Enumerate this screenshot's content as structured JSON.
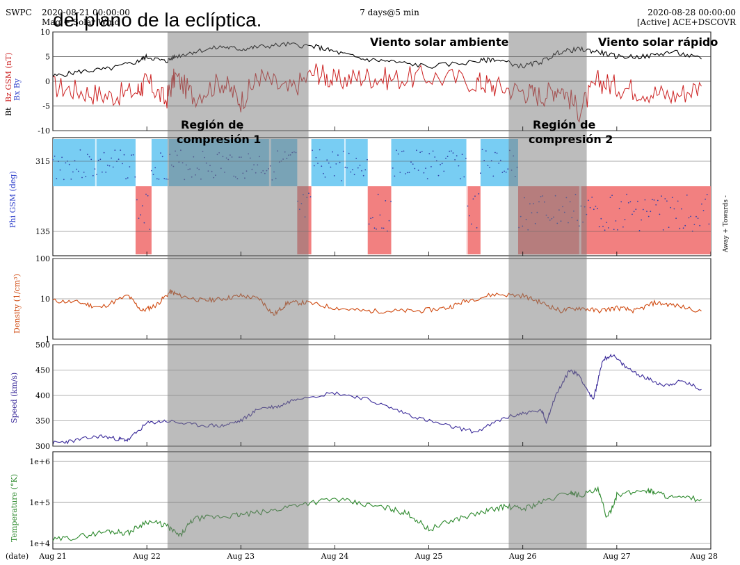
{
  "header": {
    "caption_fragment": "del plano de la eclíptica.",
    "agency": "SWPC",
    "start_date": "2020-08-21 00:00:00",
    "product": "Mag + Solar Wind",
    "span": "7 days@5 min",
    "end_date": "2020-08-28 00:00:00",
    "source": "[Active] ACE+DSCOVR"
  },
  "annotations": {
    "ambient": "Viento solar ambiente",
    "fast": "Viento solar rápido",
    "region1_line1": "Región   de",
    "region1_line2": "compresión 1",
    "region2_line1": "Región  de",
    "region2_line2": "compresión 2"
  },
  "colors": {
    "bt": "#000000",
    "bz": "#cc2222",
    "by": "#3344cc",
    "phi_towards": "#78cdf3",
    "phi_away": "#f28080",
    "phi_points": "#3344aa",
    "density": "#d04a10",
    "speed": "#3a2a9a",
    "temperature": "#2e8a2e",
    "shade": "#7a7a7a"
  },
  "chart_data": [
    {
      "type": "line",
      "panel": "mag",
      "ylabel_parts": [
        "Bt",
        "Bz GSM (nT)",
        "Bx",
        "By"
      ],
      "ylim": [
        -10,
        10
      ],
      "yticks": [
        -10,
        -5,
        0,
        5,
        10
      ],
      "x_unit": "days since 2020-08-21 00:00",
      "series": [
        {
          "name": "Bt",
          "x": [
            0,
            0.3,
            0.6,
            0.9,
            1.0,
            1.2,
            1.3,
            1.5,
            1.8,
            2.0,
            2.2,
            2.5,
            2.8,
            3.0,
            3.3,
            3.6,
            4.0,
            4.5,
            4.7,
            5.0,
            5.2,
            5.4,
            5.6,
            5.8,
            6.0,
            6.3,
            6.6,
            6.9
          ],
          "y": [
            1,
            2,
            2.5,
            4,
            5,
            4,
            5,
            6,
            7,
            6.5,
            7,
            7.5,
            7,
            6,
            4.5,
            4,
            3,
            4,
            4.5,
            3,
            4,
            6,
            6.5,
            6,
            5,
            5,
            6,
            4.5
          ]
        },
        {
          "name": "Bz",
          "x": [
            0,
            0.3,
            0.6,
            0.9,
            1.0,
            1.2,
            1.3,
            1.5,
            1.8,
            2.0,
            2.2,
            2.5,
            2.8,
            3.0,
            3.3,
            3.6,
            4.0,
            4.5,
            4.7,
            5.0,
            5.2,
            5.4,
            5.6,
            5.8,
            6.0,
            6.3,
            6.6,
            6.9
          ],
          "y": [
            -1,
            -2,
            -3,
            -2,
            0,
            -4,
            1,
            -3,
            0,
            -4,
            1,
            -2,
            2,
            0,
            1,
            0.5,
            1,
            0,
            -1,
            -2,
            -3,
            -1,
            -6,
            0,
            -1,
            -2,
            -3,
            -1
          ]
        }
      ]
    },
    {
      "type": "scatter",
      "panel": "phi",
      "ylabel": "Phi GSM (deg)",
      "yticks": [
        135,
        315
      ],
      "right_label": "Away +   Towards -",
      "sectors": [
        {
          "from": 0.0,
          "to": 0.88,
          "sector": "towards"
        },
        {
          "from": 0.88,
          "to": 1.05,
          "sector": "away"
        },
        {
          "from": 1.05,
          "to": 2.6,
          "sector": "towards"
        },
        {
          "from": 2.6,
          "to": 2.75,
          "sector": "away"
        },
        {
          "from": 2.75,
          "to": 3.35,
          "sector": "towards"
        },
        {
          "from": 3.35,
          "to": 3.6,
          "sector": "away"
        },
        {
          "from": 3.6,
          "to": 4.4,
          "sector": "towards"
        },
        {
          "from": 4.4,
          "to": 4.55,
          "sector": "away"
        },
        {
          "from": 4.55,
          "to": 4.95,
          "sector": "towards"
        },
        {
          "from": 4.95,
          "to": 7.0,
          "sector": "away"
        }
      ]
    },
    {
      "type": "line",
      "panel": "density",
      "ylabel": "Density (1/cm³)",
      "scale": "log",
      "ylim": [
        1,
        100
      ],
      "yticks": [
        1,
        10,
        100
      ],
      "x": [
        0,
        0.3,
        0.5,
        0.8,
        0.95,
        1.1,
        1.25,
        1.35,
        1.6,
        1.8,
        2.0,
        2.2,
        2.35,
        2.5,
        2.7,
        3.0,
        3.3,
        3.6,
        3.9,
        4.2,
        4.4,
        4.7,
        5.0,
        5.2,
        5.4,
        5.6,
        5.8,
        6.0,
        6.2,
        6.4,
        6.6,
        6.9
      ],
      "y": [
        9,
        8,
        6,
        12,
        5,
        7,
        15,
        12,
        9,
        10,
        12,
        10,
        4,
        8,
        8,
        6,
        5,
        5,
        5,
        6,
        9,
        13,
        12,
        8,
        5,
        6,
        5,
        6,
        5,
        8,
        7,
        5
      ]
    },
    {
      "type": "line",
      "panel": "speed",
      "ylabel": "Speed (km/s)",
      "ylim": [
        300,
        500
      ],
      "yticks": [
        300,
        350,
        400,
        450,
        500
      ],
      "x": [
        0,
        0.2,
        0.5,
        0.7,
        0.8,
        1.0,
        1.2,
        1.5,
        1.8,
        2.0,
        2.2,
        2.4,
        2.6,
        3.0,
        3.3,
        3.6,
        3.9,
        4.2,
        4.5,
        4.8,
        5.0,
        5.2,
        5.25,
        5.35,
        5.5,
        5.6,
        5.75,
        5.85,
        5.95,
        6.1,
        6.3,
        6.5,
        6.7,
        6.9
      ],
      "y": [
        306,
        310,
        320,
        314,
        312,
        345,
        350,
        342,
        340,
        350,
        375,
        378,
        395,
        405,
        395,
        375,
        355,
        340,
        328,
        355,
        365,
        370,
        348,
        400,
        450,
        440,
        390,
        470,
        480,
        455,
        435,
        420,
        428,
        412
      ]
    },
    {
      "type": "line",
      "panel": "temperature",
      "ylabel": "Temperature (°K)",
      "scale": "log",
      "yticks": [
        "1e+4",
        "1e+5",
        "1e+6"
      ],
      "x": [
        0,
        0.3,
        0.6,
        0.8,
        1.0,
        1.2,
        1.35,
        1.5,
        1.8,
        2.0,
        2.3,
        2.6,
        3.0,
        3.3,
        3.6,
        3.8,
        4.0,
        4.3,
        4.6,
        4.8,
        5.0,
        5.2,
        5.5,
        5.6,
        5.8,
        5.9,
        6.0,
        6.3,
        6.4,
        6.6,
        6.9
      ],
      "y": [
        12000,
        15000,
        20000,
        18000,
        35000,
        28000,
        15000,
        40000,
        45000,
        50000,
        60000,
        90000,
        120000,
        90000,
        70000,
        50000,
        22000,
        40000,
        60000,
        80000,
        70000,
        100000,
        180000,
        150000,
        200000,
        40000,
        150000,
        200000,
        180000,
        130000,
        120000
      ]
    }
  ],
  "x_axis": {
    "ticks": [
      "Aug 21",
      "Aug 22",
      "Aug 23",
      "Aug 24",
      "Aug 25",
      "Aug 26",
      "Aug 27",
      "Aug 28"
    ],
    "date_label": "(date)"
  },
  "shaded_regions": [
    {
      "from": 1.22,
      "to": 2.72,
      "label": "region1"
    },
    {
      "from": 4.85,
      "to": 5.68,
      "label": "region2"
    }
  ]
}
